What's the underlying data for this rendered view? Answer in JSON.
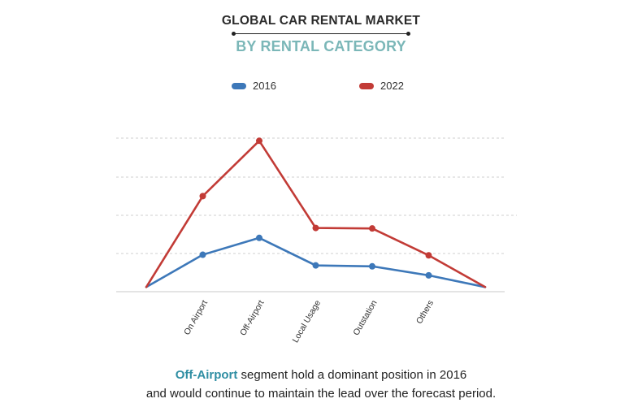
{
  "header": {
    "title": "GLOBAL CAR RENTAL MARKET",
    "subtitle": "BY RENTAL CATEGORY"
  },
  "caption": {
    "highlight": "Off-Airport",
    "line1_rest": " segment hold a dominant position in 2016",
    "line2": "and would continue to maintain the lead over the forecast period."
  },
  "colors": {
    "series_2016": "#3d78b9",
    "series_2022": "#c23b36",
    "title_accent": "#7bb7b8",
    "caption_highlight": "#2f8ea3",
    "grid": "#cfcfcf"
  },
  "chart_data": {
    "type": "line",
    "title": "",
    "xlabel": "",
    "ylabel": "",
    "categories": [
      "On Airport",
      "Off-Airport",
      "Local Usage",
      "Outstation",
      "Others"
    ],
    "x_start_label": "",
    "x_end_label": "",
    "ylim": [
      0,
      100
    ],
    "grid": true,
    "y_axis_labels_shown": false,
    "legend": {
      "placement": "top-center"
    },
    "series": [
      {
        "name": "2016",
        "color": "#3d78b9",
        "start": 2,
        "values": [
          23.5,
          34.7,
          16.4,
          15.8,
          9.8
        ],
        "end": 2
      },
      {
        "name": "2022",
        "color": "#c23b36",
        "start": 2,
        "values": [
          62.5,
          99.3,
          41.3,
          41.0,
          23.1
        ],
        "end": 2
      }
    ]
  }
}
